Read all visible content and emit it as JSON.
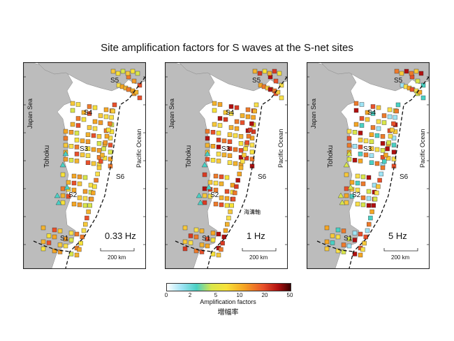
{
  "title": "Site amplification factors for S waves at the S-net sites",
  "panels": [
    {
      "frequency": "0.33 Hz"
    },
    {
      "frequency": "1 Hz",
      "annotation": "海溝軸"
    },
    {
      "frequency": "5 Hz"
    }
  ],
  "labels": {
    "japan_sea": "Japan Sea",
    "tohoku": "Tohoku",
    "pacific_ocean": "Pacific Ocean",
    "s1": "S1",
    "s2": "S2",
    "s3": "S3",
    "s4": "S4",
    "s5": "S5",
    "s6": "S6",
    "scale": "200 km"
  },
  "colorbar": {
    "ticks": [
      "0",
      "2",
      "5",
      "10",
      "20",
      "50"
    ],
    "label": "Amplification factors",
    "label_ja": "増幅率",
    "colors": [
      "#ffffff",
      "#9fe4f5",
      "#49d0c4",
      "#d9e64a",
      "#f7e23a",
      "#f5a623",
      "#e8502a",
      "#b01010",
      "#3a0000"
    ]
  }
}
